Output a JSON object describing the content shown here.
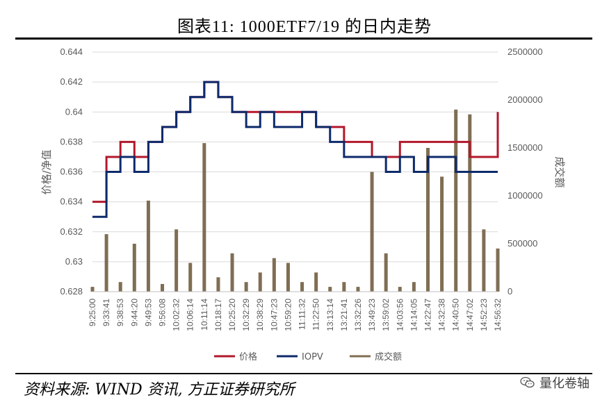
{
  "header": {
    "title": "图表11:        1000ETF7/19 的日内走势"
  },
  "footer": {
    "source": "资料来源: WIND 资讯, 方正证券研究所",
    "watermark": "量化卷轴"
  },
  "chart_data": {
    "type": "line",
    "x": [
      "9:25:00",
      "9:33:41",
      "9:38:53",
      "9:44:20",
      "9:49:53",
      "9:56:08",
      "10:02:32",
      "10:06:14",
      "10:11:14",
      "10:18:17",
      "10:25:20",
      "10:32:29",
      "10:38:29",
      "10:47:23",
      "10:59:20",
      "11:11:32",
      "11:22:50",
      "13:13:14",
      "13:21:41",
      "13:32:26",
      "13:49:23",
      "13:59:02",
      "14:03:56",
      "14:14:05",
      "14:22:47",
      "14:32:38",
      "14:40:50",
      "14:47:02",
      "14:52:23",
      "14:56:32"
    ],
    "ylabel": "价格/净值",
    "y2label": "成交额",
    "ylim": [
      0.628,
      0.644
    ],
    "y2lim": [
      0,
      2500000
    ],
    "yticks": [
      "0.644",
      "0.642",
      "0.64",
      "0.638",
      "0.636",
      "0.634",
      "0.632",
      "0.63",
      "0.628"
    ],
    "y2ticks": [
      "2500000",
      "2000000",
      "1500000",
      "1000000",
      "500000",
      "0"
    ],
    "legend_position": "bottom",
    "series": [
      {
        "name": "价格",
        "axis": "left",
        "color": "#B2182B",
        "values": [
          0.634,
          0.637,
          0.638,
          0.637,
          0.638,
          0.639,
          0.64,
          0.641,
          0.642,
          0.641,
          0.64,
          0.64,
          0.64,
          0.64,
          0.64,
          0.64,
          0.639,
          0.639,
          0.638,
          0.638,
          0.637,
          0.637,
          0.638,
          0.638,
          0.638,
          0.638,
          0.638,
          0.637,
          0.637,
          0.64
        ]
      },
      {
        "name": "IOPV",
        "axis": "left",
        "color": "#0D2A6B",
        "values": [
          0.633,
          0.636,
          0.637,
          0.636,
          0.638,
          0.639,
          0.64,
          0.641,
          0.642,
          0.641,
          0.64,
          0.639,
          0.64,
          0.639,
          0.639,
          0.64,
          0.639,
          0.638,
          0.637,
          0.637,
          0.637,
          0.636,
          0.637,
          0.636,
          0.637,
          0.637,
          0.636,
          0.636,
          0.636,
          0.636
        ]
      },
      {
        "name": "成交额",
        "axis": "right",
        "color": "#7F6E54",
        "type": "bar",
        "values": [
          50000,
          600000,
          100000,
          500000,
          950000,
          80000,
          650000,
          300000,
          1550000,
          150000,
          400000,
          100000,
          200000,
          350000,
          300000,
          100000,
          200000,
          50000,
          100000,
          50000,
          1250000,
          400000,
          50000,
          100000,
          1500000,
          1200000,
          1900000,
          1850000,
          650000,
          450000
        ]
      }
    ]
  }
}
